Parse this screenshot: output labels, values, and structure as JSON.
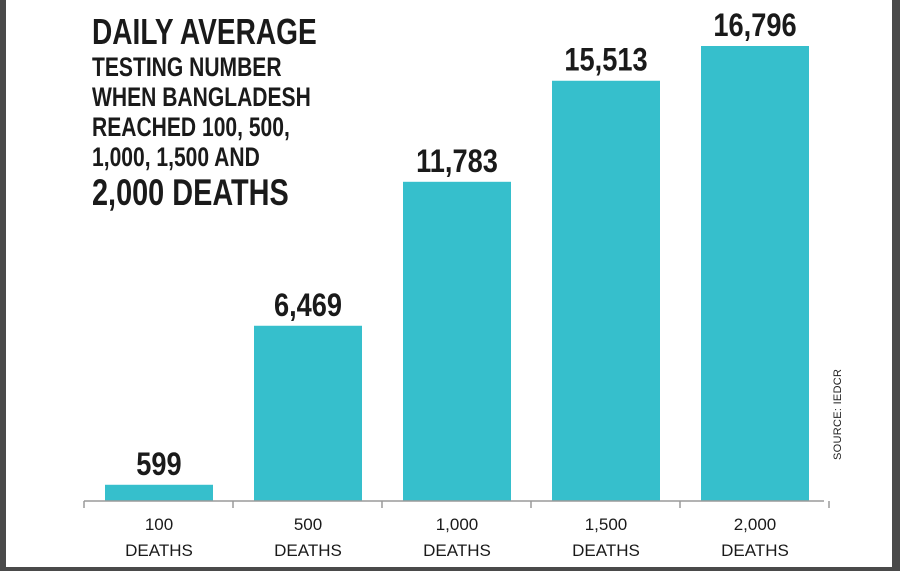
{
  "chart_data": {
    "type": "bar",
    "title_lines": [
      "DAILY AVERAGE",
      "TESTING NUMBER",
      "WHEN BANGLADESH",
      "REACHED 100, 500,",
      "1,000, 1,500 AND",
      "2,000 DEATHS"
    ],
    "categories": [
      [
        "100",
        "DEATHS"
      ],
      [
        "500",
        "DEATHS"
      ],
      [
        "1,000",
        "DEATHS"
      ],
      [
        "1,500",
        "DEATHS"
      ],
      [
        "2,000",
        "DEATHS"
      ]
    ],
    "values": [
      599,
      6469,
      11783,
      15513,
      16796
    ],
    "value_labels": [
      "599",
      "6,469",
      "11,783",
      "15,513",
      "16,796"
    ],
    "source": "SOURCE: IEDCR",
    "bar_color": "#36bfcc",
    "text_color": "#1a1a1a",
    "axis_color": "#9a9a9a",
    "ylim": [
      0,
      16796
    ],
    "grid": false
  }
}
